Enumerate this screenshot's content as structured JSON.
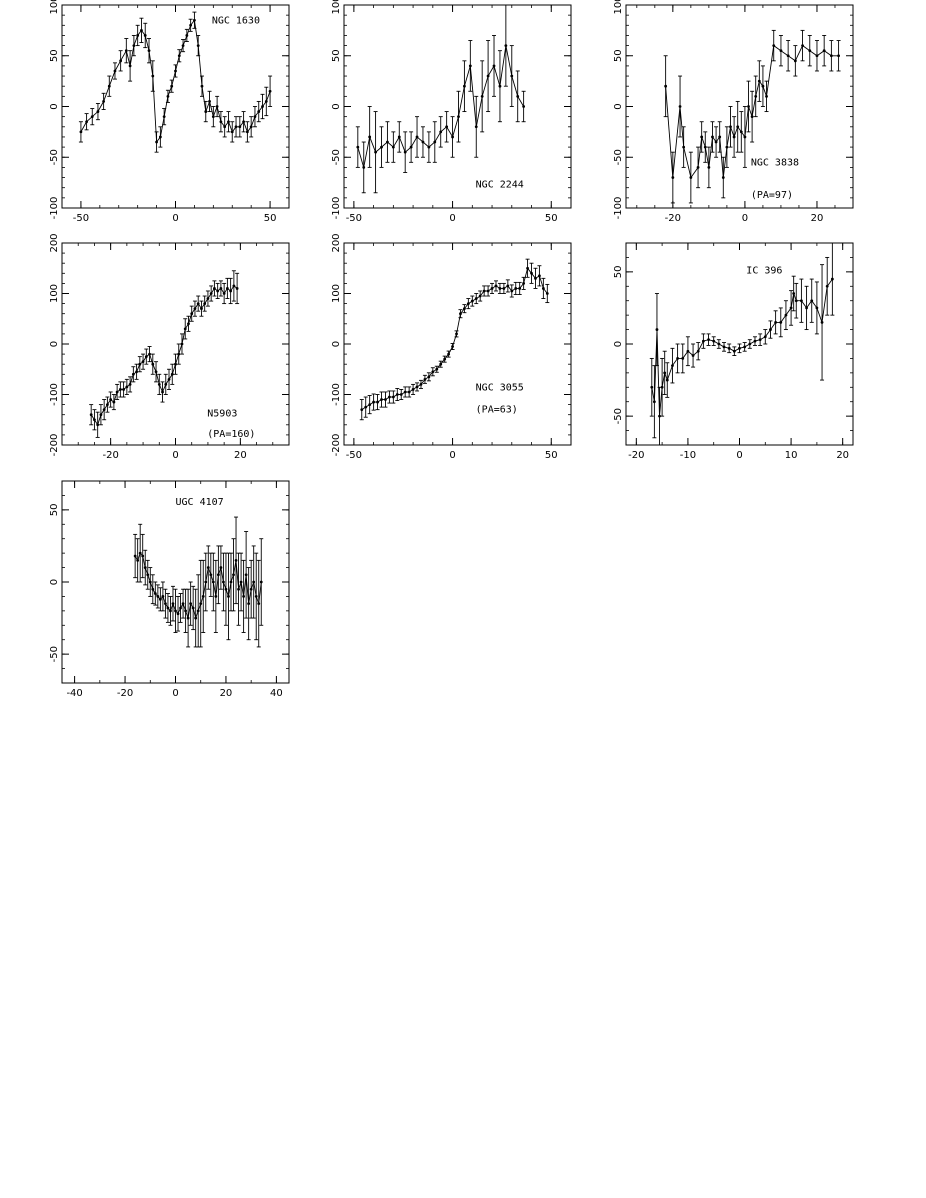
{
  "chart_data": [
    {
      "type": "scatter",
      "error_bars": true,
      "xlim": [
        -60,
        60
      ],
      "ylim": [
        -100,
        100
      ],
      "xticks": [
        -50,
        0,
        50
      ],
      "yticks": [
        -100,
        -50,
        0,
        50,
        100
      ],
      "xtick_labels": [
        "-50",
        "0",
        "50"
      ],
      "ytick_labels": [
        "-100",
        "-50",
        "0",
        "50",
        "100"
      ],
      "annotations": [
        "NGC 1630"
      ],
      "series": [
        {
          "x": [
            -50,
            -47,
            -44,
            -41,
            -38,
            -35,
            -32,
            -29,
            -26,
            -24,
            -22,
            -20,
            -18,
            -16,
            -14,
            -12,
            -10,
            -8,
            -6,
            -4,
            -2,
            0,
            2,
            4,
            6,
            8,
            10,
            12,
            14,
            16,
            18,
            20,
            22,
            24,
            26,
            28,
            30,
            32,
            34,
            36,
            38,
            40,
            42,
            44,
            46,
            48,
            50
          ],
          "y": [
            -25,
            -15,
            -10,
            -5,
            5,
            20,
            35,
            45,
            55,
            40,
            60,
            70,
            75,
            70,
            55,
            30,
            -35,
            -30,
            -10,
            10,
            20,
            35,
            50,
            60,
            70,
            80,
            85,
            60,
            20,
            -5,
            5,
            -10,
            0,
            -15,
            -20,
            -15,
            -25,
            -20,
            -20,
            -15,
            -25,
            -20,
            -10,
            -5,
            0,
            5,
            15
          ],
          "err": [
            10,
            8,
            8,
            8,
            8,
            10,
            8,
            10,
            12,
            15,
            10,
            10,
            12,
            12,
            12,
            15,
            10,
            10,
            8,
            6,
            6,
            6,
            6,
            6,
            6,
            6,
            8,
            10,
            10,
            10,
            10,
            10,
            10,
            10,
            10,
            10,
            10,
            10,
            10,
            10,
            10,
            10,
            10,
            10,
            12,
            14,
            15
          ]
        }
      ]
    },
    {
      "type": "scatter",
      "error_bars": true,
      "xlim": [
        -55,
        60
      ],
      "ylim": [
        -100,
        100
      ],
      "xticks": [
        -50,
        0,
        50
      ],
      "yticks": [
        -100,
        -50,
        0,
        50,
        100
      ],
      "xtick_labels": [
        "-50",
        "0",
        "50"
      ],
      "ytick_labels": [
        "-100",
        "-50",
        "0",
        "50",
        "100"
      ],
      "annotations": [
        "NGC 2244"
      ],
      "series": [
        {
          "x": [
            -48,
            -45,
            -42,
            -39,
            -36,
            -33,
            -30,
            -27,
            -24,
            -21,
            -18,
            -15,
            -12,
            -9,
            -6,
            -3,
            0,
            3,
            6,
            9,
            12,
            15,
            18,
            21,
            24,
            27,
            30,
            33,
            36
          ],
          "y": [
            -40,
            -60,
            -30,
            -45,
            -40,
            -35,
            -40,
            -30,
            -45,
            -40,
            -30,
            -35,
            -40,
            -35,
            -25,
            -20,
            -30,
            -10,
            20,
            40,
            -20,
            10,
            30,
            40,
            20,
            60,
            30,
            10,
            0
          ],
          "err": [
            20,
            25,
            30,
            40,
            20,
            20,
            15,
            15,
            20,
            15,
            20,
            15,
            15,
            20,
            15,
            15,
            20,
            25,
            25,
            25,
            30,
            35,
            35,
            30,
            35,
            40,
            30,
            25,
            15
          ]
        }
      ]
    },
    {
      "type": "scatter",
      "error_bars": true,
      "xlim": [
        -33,
        30
      ],
      "ylim": [
        -100,
        100
      ],
      "xticks": [
        -20,
        0,
        20
      ],
      "yticks": [
        -100,
        -50,
        0,
        50,
        100
      ],
      "xtick_labels": [
        "-20",
        "0",
        "20"
      ],
      "ytick_labels": [
        "-100",
        "-50",
        "0",
        "50",
        "100"
      ],
      "annotations": [
        "NGC 3838",
        "(PA=97)"
      ],
      "series": [
        {
          "x": [
            -22,
            -20,
            -18,
            -17,
            -15,
            -13,
            -12,
            -11,
            -10,
            -9,
            -8,
            -7,
            -6,
            -5,
            -4,
            -3,
            -2,
            -1,
            0,
            1,
            2,
            3,
            4,
            5,
            6,
            8,
            10,
            12,
            14,
            16,
            18,
            20,
            22,
            24,
            26
          ],
          "y": [
            20,
            -70,
            0,
            -40,
            -70,
            -60,
            -30,
            -40,
            -60,
            -30,
            -35,
            -30,
            -70,
            -40,
            -20,
            -30,
            -20,
            -25,
            -30,
            0,
            -10,
            10,
            25,
            20,
            10,
            60,
            55,
            50,
            45,
            60,
            55,
            50,
            55,
            50,
            50
          ],
          "err": [
            30,
            25,
            30,
            20,
            25,
            20,
            15,
            15,
            20,
            15,
            15,
            15,
            20,
            20,
            20,
            20,
            25,
            20,
            30,
            25,
            25,
            20,
            20,
            20,
            15,
            15,
            15,
            15,
            15,
            15,
            15,
            15,
            15,
            15,
            15
          ]
        }
      ]
    },
    {
      "type": "scatter",
      "error_bars": true,
      "xlim": [
        -35,
        35
      ],
      "ylim": [
        -200,
        200
      ],
      "xticks": [
        -20,
        0,
        20
      ],
      "yticks": [
        -200,
        -100,
        0,
        100,
        200
      ],
      "xtick_labels": [
        "-20",
        "0",
        "20"
      ],
      "ytick_labels": [
        "-200",
        "-100",
        "0",
        "100",
        "200"
      ],
      "annotations": [
        "N5903",
        "(PA=160)"
      ],
      "series": [
        {
          "x": [
            -26,
            -25,
            -24,
            -23,
            -22,
            -21,
            -20,
            -19,
            -18,
            -17,
            -16,
            -15,
            -14,
            -13,
            -12,
            -11,
            -10,
            -9,
            -8,
            -7,
            -6,
            -5,
            -4,
            -3,
            -2,
            -1,
            0,
            1,
            2,
            3,
            4,
            5,
            6,
            7,
            8,
            9,
            10,
            11,
            12,
            13,
            14,
            15,
            16,
            17,
            18,
            19
          ],
          "y": [
            -140,
            -150,
            -160,
            -140,
            -130,
            -120,
            -110,
            -115,
            -95,
            -90,
            -90,
            -85,
            -80,
            -60,
            -55,
            -40,
            -35,
            -25,
            -20,
            -40,
            -55,
            -80,
            -95,
            -80,
            -70,
            -60,
            -40,
            -20,
            0,
            30,
            40,
            60,
            70,
            80,
            70,
            80,
            90,
            100,
            110,
            105,
            110,
            100,
            110,
            105,
            115,
            110
          ],
          "err": [
            20,
            20,
            25,
            20,
            20,
            15,
            15,
            15,
            15,
            15,
            15,
            15,
            15,
            15,
            15,
            15,
            15,
            15,
            15,
            20,
            20,
            20,
            20,
            20,
            20,
            20,
            20,
            20,
            20,
            20,
            15,
            15,
            15,
            15,
            15,
            15,
            15,
            15,
            15,
            15,
            15,
            20,
            20,
            25,
            30,
            30
          ]
        }
      ]
    },
    {
      "type": "scatter",
      "error_bars": true,
      "xlim": [
        -55,
        60
      ],
      "ylim": [
        -200,
        200
      ],
      "xticks": [
        -50,
        0,
        50
      ],
      "yticks": [
        -200,
        -100,
        0,
        100,
        200
      ],
      "xtick_labels": [
        "-50",
        "0",
        "50"
      ],
      "ytick_labels": [
        "-200",
        "-100",
        "0",
        "100",
        "200"
      ],
      "annotations": [
        "NGC 3055",
        "(PA=63)"
      ],
      "series": [
        {
          "x": [
            -46,
            -44,
            -42,
            -40,
            -38,
            -36,
            -34,
            -32,
            -30,
            -28,
            -26,
            -24,
            -22,
            -20,
            -18,
            -16,
            -14,
            -12,
            -10,
            -8,
            -6,
            -4,
            -2,
            0,
            2,
            4,
            6,
            8,
            10,
            12,
            14,
            16,
            18,
            20,
            22,
            24,
            26,
            28,
            30,
            32,
            34,
            36,
            38,
            40,
            42,
            44,
            46,
            48
          ],
          "y": [
            -130,
            -125,
            -120,
            -115,
            -115,
            -110,
            -110,
            -105,
            -105,
            -100,
            -100,
            -95,
            -95,
            -90,
            -85,
            -80,
            -70,
            -65,
            -55,
            -50,
            -40,
            -30,
            -20,
            -5,
            20,
            60,
            70,
            80,
            85,
            90,
            95,
            105,
            105,
            110,
            115,
            110,
            110,
            115,
            105,
            110,
            110,
            120,
            150,
            140,
            130,
            135,
            110,
            100
          ],
          "err": [
            20,
            20,
            18,
            16,
            15,
            15,
            15,
            12,
            12,
            12,
            10,
            10,
            10,
            10,
            8,
            8,
            8,
            8,
            8,
            6,
            6,
            6,
            6,
            6,
            6,
            8,
            8,
            10,
            10,
            10,
            10,
            10,
            10,
            10,
            10,
            10,
            10,
            12,
            12,
            12,
            12,
            12,
            18,
            20,
            20,
            20,
            20,
            18
          ]
        }
      ]
    },
    {
      "type": "scatter",
      "error_bars": true,
      "xlim": [
        -22,
        22
      ],
      "ylim": [
        -70,
        70
      ],
      "xticks": [
        -20,
        -10,
        0,
        10,
        20
      ],
      "yticks": [
        -50,
        0,
        50
      ],
      "xtick_labels": [
        "-20",
        "-10",
        "0",
        "10",
        "20"
      ],
      "ytick_labels": [
        "-50",
        "0",
        "50"
      ],
      "annotations": [
        "IC 396"
      ],
      "series": [
        {
          "x": [
            -17,
            -16.5,
            -16,
            -15.5,
            -15,
            -14.5,
            -14,
            -13,
            -12,
            -11,
            -10,
            -9,
            -8,
            -7,
            -6,
            -5,
            -4,
            -3,
            -2,
            -1,
            0,
            1,
            2,
            3,
            4,
            5,
            6,
            7,
            8,
            9,
            10,
            10.5,
            11,
            12,
            13,
            14,
            15,
            16,
            17,
            18
          ],
          "y": [
            -30,
            -40,
            10,
            -50,
            -30,
            -20,
            -25,
            -15,
            -10,
            -10,
            -5,
            -8,
            -5,
            2,
            3,
            2,
            0,
            -2,
            -3,
            -5,
            -3,
            -2,
            0,
            2,
            3,
            5,
            10,
            15,
            15,
            20,
            25,
            35,
            30,
            30,
            25,
            30,
            25,
            15,
            40,
            45
          ],
          "err": [
            20,
            25,
            25,
            20,
            20,
            15,
            12,
            12,
            10,
            10,
            10,
            8,
            6,
            5,
            4,
            3,
            3,
            3,
            3,
            3,
            3,
            3,
            3,
            3,
            4,
            5,
            6,
            8,
            10,
            10,
            12,
            12,
            12,
            15,
            15,
            15,
            18,
            40,
            20,
            25
          ]
        }
      ]
    },
    {
      "type": "scatter",
      "error_bars": true,
      "xlim": [
        -45,
        45
      ],
      "ylim": [
        -70,
        70
      ],
      "xticks": [
        -40,
        -20,
        0,
        20,
        40
      ],
      "yticks": [
        -50,
        0,
        50
      ],
      "xtick_labels": [
        "-40",
        "-20",
        "0",
        "20",
        "40"
      ],
      "ytick_labels": [
        "-50",
        "0",
        "50"
      ],
      "annotations": [
        "UGC 4107"
      ],
      "series": [
        {
          "x": [
            -16,
            -15,
            -14,
            -13,
            -12,
            -11,
            -10,
            -9,
            -8,
            -7,
            -6,
            -5,
            -4,
            -3,
            -2,
            -1,
            0,
            1,
            2,
            3,
            4,
            5,
            6,
            7,
            8,
            9,
            10,
            11,
            12,
            13,
            14,
            15,
            16,
            17,
            18,
            19,
            20,
            21,
            22,
            23,
            24,
            25,
            26,
            27,
            28,
            29,
            30,
            31,
            32,
            33,
            34
          ],
          "y": [
            18,
            15,
            20,
            18,
            10,
            5,
            0,
            -5,
            -8,
            -10,
            -12,
            -10,
            -15,
            -18,
            -20,
            -15,
            -20,
            -22,
            -18,
            -15,
            -20,
            -25,
            -15,
            -18,
            -25,
            -20,
            -15,
            -10,
            0,
            10,
            5,
            0,
            -10,
            5,
            10,
            0,
            -5,
            -10,
            0,
            5,
            15,
            -5,
            0,
            -10,
            5,
            -15,
            -5,
            0,
            -10,
            -15,
            0
          ],
          "err": [
            15,
            15,
            20,
            15,
            12,
            10,
            10,
            10,
            8,
            8,
            8,
            10,
            10,
            10,
            10,
            12,
            15,
            12,
            10,
            10,
            15,
            20,
            15,
            15,
            20,
            25,
            30,
            25,
            20,
            15,
            15,
            20,
            25,
            20,
            15,
            20,
            25,
            30,
            20,
            25,
            30,
            25,
            20,
            25,
            30,
            25,
            20,
            25,
            30,
            30,
            30
          ]
        }
      ]
    }
  ]
}
